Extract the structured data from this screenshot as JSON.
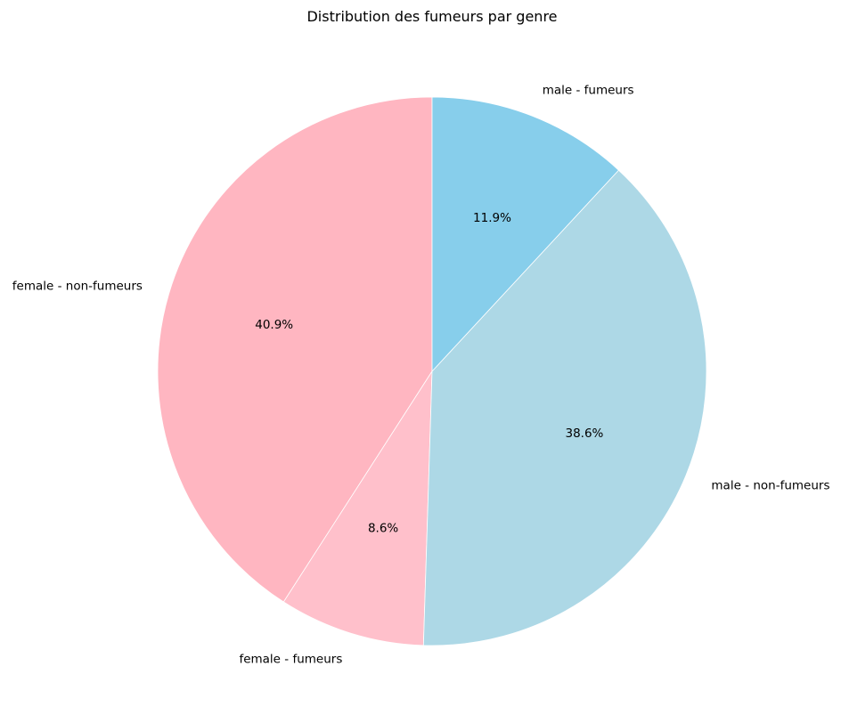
{
  "chart_data": {
    "type": "pie",
    "title": "Distribution des fumeurs par genre",
    "start_angle_deg": 90,
    "direction": "counterclockwise",
    "slices": [
      {
        "label": "female - non-fumeurs",
        "value": 40.9,
        "pct_label": "40.9%",
        "color": "#FFB6C1"
      },
      {
        "label": "female - fumeurs",
        "value": 8.6,
        "pct_label": "8.6%",
        "color": "#FFC0CB"
      },
      {
        "label": "male - non-fumeurs",
        "value": 38.6,
        "pct_label": "38.6%",
        "color": "#ADD8E6"
      },
      {
        "label": "male - fumeurs",
        "value": 11.9,
        "pct_label": "11.9%",
        "color": "#87CEEB"
      }
    ]
  }
}
